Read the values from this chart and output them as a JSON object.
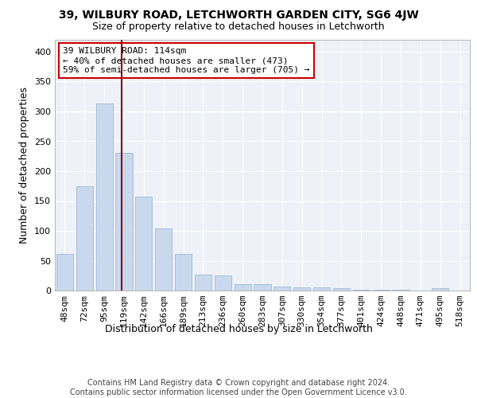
{
  "title_line1": "39, WILBURY ROAD, LETCHWORTH GARDEN CITY, SG6 4JW",
  "title_line2": "Size of property relative to detached houses in Letchworth",
  "xlabel": "Distribution of detached houses by size in Letchworth",
  "ylabel": "Number of detached properties",
  "footer_line1": "Contains HM Land Registry data © Crown copyright and database right 2024.",
  "footer_line2": "Contains public sector information licensed under the Open Government Licence v3.0.",
  "bar_labels": [
    "48sqm",
    "72sqm",
    "95sqm",
    "119sqm",
    "142sqm",
    "166sqm",
    "189sqm",
    "213sqm",
    "236sqm",
    "260sqm",
    "283sqm",
    "307sqm",
    "330sqm",
    "354sqm",
    "377sqm",
    "401sqm",
    "424sqm",
    "448sqm",
    "471sqm",
    "495sqm",
    "518sqm"
  ],
  "bar_values": [
    62,
    175,
    313,
    230,
    158,
    104,
    62,
    27,
    25,
    11,
    11,
    7,
    5,
    5,
    4,
    2,
    1,
    1,
    0,
    4,
    0
  ],
  "bar_color": "#c8d9ee",
  "bar_edgecolor": "#a0b8d8",
  "property_line_color": "#8b0000",
  "annotation_text": "39 WILBURY ROAD: 114sqm\n← 40% of detached houses are smaller (473)\n59% of semi-detached houses are larger (705) →",
  "annotation_box_color": "#ffffff",
  "annotation_box_edgecolor": "#cc0000",
  "ylim": [
    0,
    420
  ],
  "yticks": [
    0,
    50,
    100,
    150,
    200,
    250,
    300,
    350,
    400
  ],
  "background_color": "#eef2f8",
  "grid_color": "#ffffff",
  "title_fontsize": 10,
  "subtitle_fontsize": 9,
  "axis_label_fontsize": 9,
  "tick_fontsize": 8,
  "annotation_fontsize": 8,
  "footer_fontsize": 7
}
